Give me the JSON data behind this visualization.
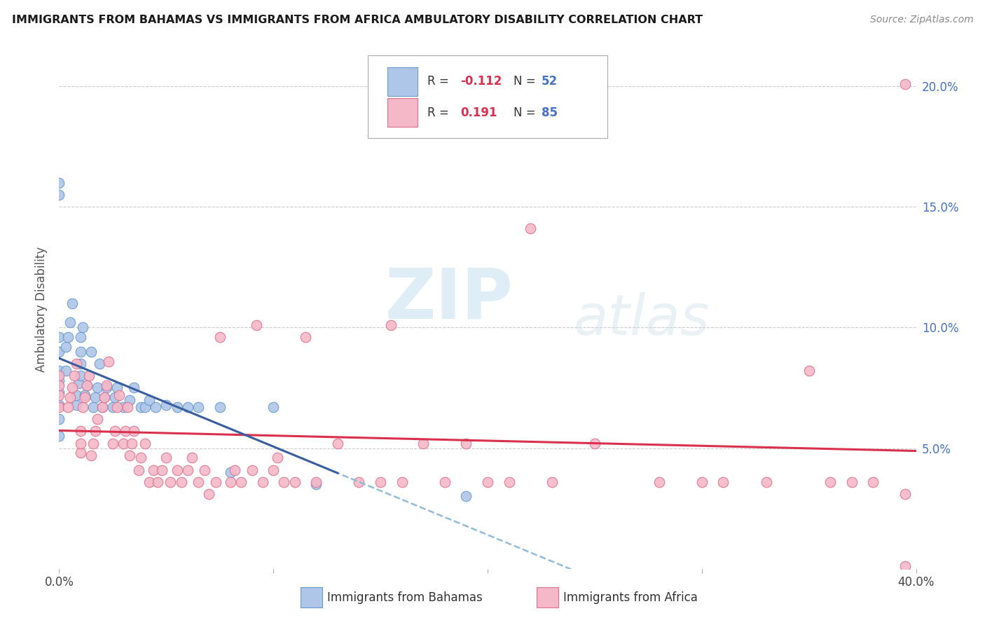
{
  "title": "IMMIGRANTS FROM BAHAMAS VS IMMIGRANTS FROM AFRICA AMBULATORY DISABILITY CORRELATION CHART",
  "source": "Source: ZipAtlas.com",
  "ylabel": "Ambulatory Disability",
  "xlim": [
    0.0,
    0.4
  ],
  "ylim": [
    0.0,
    0.215
  ],
  "xticks": [
    0.0,
    0.1,
    0.2,
    0.3,
    0.4
  ],
  "xticklabels": [
    "0.0%",
    "",
    "",
    "",
    "40.0%"
  ],
  "yticks_right": [
    0.05,
    0.1,
    0.15,
    0.2
  ],
  "ytick_right_labels": [
    "5.0%",
    "10.0%",
    "15.0%",
    "20.0%"
  ],
  "bahamas_color": "#aec6e8",
  "africa_color": "#f4b8c8",
  "bahamas_edge": "#6699cc",
  "africa_edge": "#e07090",
  "trendline_bahamas_solid": "#3a5fa0",
  "trendline_africa_solid": "#d9304e",
  "trendline_dashed_color": "#90bcd8",
  "background_color": "#ffffff",
  "grid_color": "#cccccc",
  "watermark": "ZIPatlas",
  "bahamas_x": [
    0.0,
    0.0,
    0.0,
    0.0,
    0.0,
    0.0,
    0.0,
    0.0,
    0.0,
    0.0,
    0.003,
    0.003,
    0.004,
    0.005,
    0.006,
    0.008,
    0.008,
    0.009,
    0.01,
    0.01,
    0.01,
    0.01,
    0.011,
    0.012,
    0.013,
    0.015,
    0.016,
    0.017,
    0.018,
    0.019,
    0.02,
    0.021,
    0.022,
    0.025,
    0.026,
    0.027,
    0.03,
    0.033,
    0.035,
    0.038,
    0.04,
    0.042,
    0.045,
    0.05,
    0.055,
    0.06,
    0.065,
    0.075,
    0.08,
    0.1,
    0.12,
    0.19
  ],
  "bahamas_y": [
    0.055,
    0.062,
    0.068,
    0.073,
    0.078,
    0.082,
    0.09,
    0.096,
    0.16,
    0.155,
    0.082,
    0.092,
    0.096,
    0.102,
    0.11,
    0.068,
    0.072,
    0.077,
    0.08,
    0.085,
    0.09,
    0.096,
    0.1,
    0.072,
    0.076,
    0.09,
    0.067,
    0.071,
    0.075,
    0.085,
    0.067,
    0.071,
    0.075,
    0.067,
    0.071,
    0.075,
    0.067,
    0.07,
    0.075,
    0.067,
    0.067,
    0.07,
    0.067,
    0.068,
    0.067,
    0.067,
    0.067,
    0.067,
    0.04,
    0.067,
    0.035,
    0.03
  ],
  "africa_x": [
    0.0,
    0.0,
    0.0,
    0.0,
    0.004,
    0.005,
    0.006,
    0.007,
    0.008,
    0.01,
    0.01,
    0.01,
    0.011,
    0.012,
    0.013,
    0.014,
    0.015,
    0.016,
    0.017,
    0.018,
    0.02,
    0.021,
    0.022,
    0.023,
    0.025,
    0.026,
    0.027,
    0.028,
    0.03,
    0.031,
    0.032,
    0.033,
    0.034,
    0.035,
    0.037,
    0.038,
    0.04,
    0.042,
    0.044,
    0.046,
    0.048,
    0.05,
    0.052,
    0.055,
    0.057,
    0.06,
    0.062,
    0.065,
    0.068,
    0.07,
    0.073,
    0.075,
    0.08,
    0.082,
    0.085,
    0.09,
    0.092,
    0.095,
    0.1,
    0.102,
    0.105,
    0.11,
    0.115,
    0.12,
    0.13,
    0.14,
    0.15,
    0.155,
    0.16,
    0.17,
    0.18,
    0.19,
    0.2,
    0.21,
    0.22,
    0.23,
    0.25,
    0.28,
    0.3,
    0.31,
    0.33,
    0.35,
    0.36,
    0.37,
    0.38,
    0.395,
    0.395,
    0.395
  ],
  "africa_y": [
    0.067,
    0.072,
    0.076,
    0.08,
    0.067,
    0.071,
    0.075,
    0.08,
    0.085,
    0.048,
    0.052,
    0.057,
    0.067,
    0.071,
    0.076,
    0.08,
    0.047,
    0.052,
    0.057,
    0.062,
    0.067,
    0.071,
    0.076,
    0.086,
    0.052,
    0.057,
    0.067,
    0.072,
    0.052,
    0.057,
    0.067,
    0.047,
    0.052,
    0.057,
    0.041,
    0.046,
    0.052,
    0.036,
    0.041,
    0.036,
    0.041,
    0.046,
    0.036,
    0.041,
    0.036,
    0.041,
    0.046,
    0.036,
    0.041,
    0.031,
    0.036,
    0.096,
    0.036,
    0.041,
    0.036,
    0.041,
    0.101,
    0.036,
    0.041,
    0.046,
    0.036,
    0.036,
    0.096,
    0.036,
    0.052,
    0.036,
    0.036,
    0.101,
    0.036,
    0.052,
    0.036,
    0.052,
    0.036,
    0.036,
    0.141,
    0.036,
    0.052,
    0.036,
    0.036,
    0.036,
    0.036,
    0.082,
    0.036,
    0.036,
    0.036,
    0.031,
    0.201,
    0.001
  ]
}
